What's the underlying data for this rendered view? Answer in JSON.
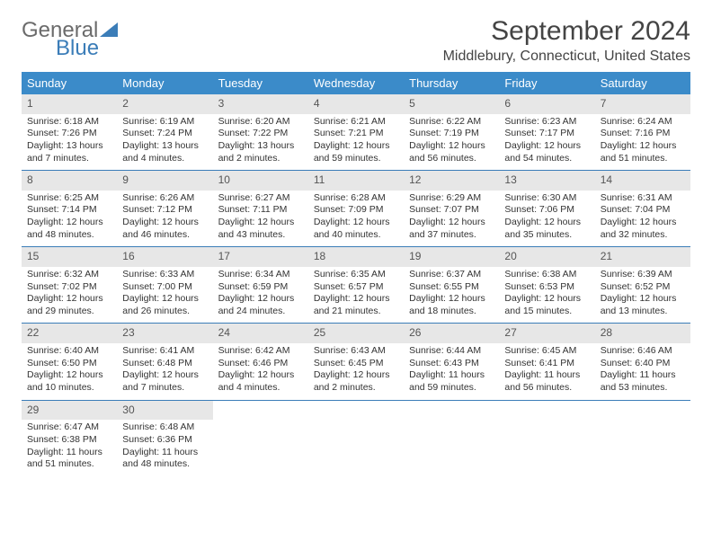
{
  "logo": {
    "text1": "General",
    "text2": "Blue"
  },
  "title": "September 2024",
  "location": "Middlebury, Connecticut, United States",
  "dayHeaders": [
    "Sunday",
    "Monday",
    "Tuesday",
    "Wednesday",
    "Thursday",
    "Friday",
    "Saturday"
  ],
  "colors": {
    "headerBg": "#3b8bc9",
    "headerText": "#ffffff",
    "dayNumBg": "#e7e7e7",
    "weekBorder": "#3b7db8",
    "logoGray": "#6b6b6b",
    "logoBlue": "#3b7db8"
  },
  "weeks": [
    [
      {
        "n": "1",
        "sr": "Sunrise: 6:18 AM",
        "ss": "Sunset: 7:26 PM",
        "dl": "Daylight: 13 hours and 7 minutes."
      },
      {
        "n": "2",
        "sr": "Sunrise: 6:19 AM",
        "ss": "Sunset: 7:24 PM",
        "dl": "Daylight: 13 hours and 4 minutes."
      },
      {
        "n": "3",
        "sr": "Sunrise: 6:20 AM",
        "ss": "Sunset: 7:22 PM",
        "dl": "Daylight: 13 hours and 2 minutes."
      },
      {
        "n": "4",
        "sr": "Sunrise: 6:21 AM",
        "ss": "Sunset: 7:21 PM",
        "dl": "Daylight: 12 hours and 59 minutes."
      },
      {
        "n": "5",
        "sr": "Sunrise: 6:22 AM",
        "ss": "Sunset: 7:19 PM",
        "dl": "Daylight: 12 hours and 56 minutes."
      },
      {
        "n": "6",
        "sr": "Sunrise: 6:23 AM",
        "ss": "Sunset: 7:17 PM",
        "dl": "Daylight: 12 hours and 54 minutes."
      },
      {
        "n": "7",
        "sr": "Sunrise: 6:24 AM",
        "ss": "Sunset: 7:16 PM",
        "dl": "Daylight: 12 hours and 51 minutes."
      }
    ],
    [
      {
        "n": "8",
        "sr": "Sunrise: 6:25 AM",
        "ss": "Sunset: 7:14 PM",
        "dl": "Daylight: 12 hours and 48 minutes."
      },
      {
        "n": "9",
        "sr": "Sunrise: 6:26 AM",
        "ss": "Sunset: 7:12 PM",
        "dl": "Daylight: 12 hours and 46 minutes."
      },
      {
        "n": "10",
        "sr": "Sunrise: 6:27 AM",
        "ss": "Sunset: 7:11 PM",
        "dl": "Daylight: 12 hours and 43 minutes."
      },
      {
        "n": "11",
        "sr": "Sunrise: 6:28 AM",
        "ss": "Sunset: 7:09 PM",
        "dl": "Daylight: 12 hours and 40 minutes."
      },
      {
        "n": "12",
        "sr": "Sunrise: 6:29 AM",
        "ss": "Sunset: 7:07 PM",
        "dl": "Daylight: 12 hours and 37 minutes."
      },
      {
        "n": "13",
        "sr": "Sunrise: 6:30 AM",
        "ss": "Sunset: 7:06 PM",
        "dl": "Daylight: 12 hours and 35 minutes."
      },
      {
        "n": "14",
        "sr": "Sunrise: 6:31 AM",
        "ss": "Sunset: 7:04 PM",
        "dl": "Daylight: 12 hours and 32 minutes."
      }
    ],
    [
      {
        "n": "15",
        "sr": "Sunrise: 6:32 AM",
        "ss": "Sunset: 7:02 PM",
        "dl": "Daylight: 12 hours and 29 minutes."
      },
      {
        "n": "16",
        "sr": "Sunrise: 6:33 AM",
        "ss": "Sunset: 7:00 PM",
        "dl": "Daylight: 12 hours and 26 minutes."
      },
      {
        "n": "17",
        "sr": "Sunrise: 6:34 AM",
        "ss": "Sunset: 6:59 PM",
        "dl": "Daylight: 12 hours and 24 minutes."
      },
      {
        "n": "18",
        "sr": "Sunrise: 6:35 AM",
        "ss": "Sunset: 6:57 PM",
        "dl": "Daylight: 12 hours and 21 minutes."
      },
      {
        "n": "19",
        "sr": "Sunrise: 6:37 AM",
        "ss": "Sunset: 6:55 PM",
        "dl": "Daylight: 12 hours and 18 minutes."
      },
      {
        "n": "20",
        "sr": "Sunrise: 6:38 AM",
        "ss": "Sunset: 6:53 PM",
        "dl": "Daylight: 12 hours and 15 minutes."
      },
      {
        "n": "21",
        "sr": "Sunrise: 6:39 AM",
        "ss": "Sunset: 6:52 PM",
        "dl": "Daylight: 12 hours and 13 minutes."
      }
    ],
    [
      {
        "n": "22",
        "sr": "Sunrise: 6:40 AM",
        "ss": "Sunset: 6:50 PM",
        "dl": "Daylight: 12 hours and 10 minutes."
      },
      {
        "n": "23",
        "sr": "Sunrise: 6:41 AM",
        "ss": "Sunset: 6:48 PM",
        "dl": "Daylight: 12 hours and 7 minutes."
      },
      {
        "n": "24",
        "sr": "Sunrise: 6:42 AM",
        "ss": "Sunset: 6:46 PM",
        "dl": "Daylight: 12 hours and 4 minutes."
      },
      {
        "n": "25",
        "sr": "Sunrise: 6:43 AM",
        "ss": "Sunset: 6:45 PM",
        "dl": "Daylight: 12 hours and 2 minutes."
      },
      {
        "n": "26",
        "sr": "Sunrise: 6:44 AM",
        "ss": "Sunset: 6:43 PM",
        "dl": "Daylight: 11 hours and 59 minutes."
      },
      {
        "n": "27",
        "sr": "Sunrise: 6:45 AM",
        "ss": "Sunset: 6:41 PM",
        "dl": "Daylight: 11 hours and 56 minutes."
      },
      {
        "n": "28",
        "sr": "Sunrise: 6:46 AM",
        "ss": "Sunset: 6:40 PM",
        "dl": "Daylight: 11 hours and 53 minutes."
      }
    ],
    [
      {
        "n": "29",
        "sr": "Sunrise: 6:47 AM",
        "ss": "Sunset: 6:38 PM",
        "dl": "Daylight: 11 hours and 51 minutes."
      },
      {
        "n": "30",
        "sr": "Sunrise: 6:48 AM",
        "ss": "Sunset: 6:36 PM",
        "dl": "Daylight: 11 hours and 48 minutes."
      },
      {
        "empty": true
      },
      {
        "empty": true
      },
      {
        "empty": true
      },
      {
        "empty": true
      },
      {
        "empty": true
      }
    ]
  ]
}
